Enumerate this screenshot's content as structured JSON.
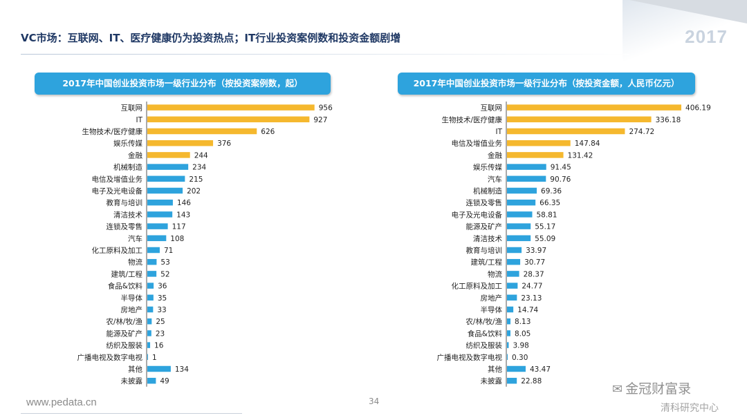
{
  "header": {
    "title": "VC市场：互联网、IT、医疗健康仍为投资热点；IT行业投资案例数和投资金额剧增",
    "year_badge": "2017"
  },
  "colors": {
    "highlight": "#f5b82e",
    "normal": "#2ea3dd"
  },
  "chart_data": [
    {
      "type": "bar",
      "orientation": "horizontal",
      "title": "2017年中国创业投资市场一级行业分布（按投资案例数，起）",
      "categories": [
        "互联网",
        "IT",
        "生物技术/医疗健康",
        "娱乐传媒",
        "金融",
        "机械制造",
        "电信及增值业务",
        "电子及光电设备",
        "教育与培训",
        "清洁技术",
        "连锁及零售",
        "汽车",
        "化工原料及加工",
        "物流",
        "建筑/工程",
        "食品&饮料",
        "半导体",
        "房地产",
        "农/林/牧/渔",
        "能源及矿产",
        "纺织及服装",
        "广播电视及数字电视",
        "其他",
        "未披露"
      ],
      "values": [
        956,
        927,
        626,
        376,
        244,
        234,
        215,
        202,
        146,
        143,
        117,
        108,
        71,
        53,
        52,
        36,
        35,
        33,
        25,
        23,
        16,
        1,
        134,
        49
      ],
      "labels": [
        "956",
        "927",
        "626",
        "376",
        "244",
        "234",
        "215",
        "202",
        "146",
        "143",
        "117",
        "108",
        "71",
        "53",
        "52",
        "36",
        "35",
        "33",
        "25",
        "23",
        "16",
        "1",
        "134",
        "49"
      ],
      "highlighted_count": 5,
      "xlim": [
        0,
        1060
      ]
    },
    {
      "type": "bar",
      "orientation": "horizontal",
      "title": "2017年中国创业投资市场一级行业分布（按投资金额，人民币亿元）",
      "categories": [
        "互联网",
        "生物技术/医疗健康",
        "IT",
        "电信及增值业务",
        "金融",
        "娱乐传媒",
        "汽车",
        "机械制造",
        "连锁及零售",
        "电子及光电设备",
        "能源及矿产",
        "清洁技术",
        "教育与培训",
        "建筑/工程",
        "物流",
        "化工原料及加工",
        "房地产",
        "半导体",
        "农/林/牧/渔",
        "食品&饮料",
        "纺织及服装",
        "广播电视及数字电视",
        "其他",
        "未披露"
      ],
      "values": [
        406.19,
        336.18,
        274.72,
        147.84,
        131.42,
        91.45,
        90.76,
        69.36,
        66.35,
        58.81,
        55.17,
        55.09,
        33.97,
        30.77,
        28.37,
        24.77,
        23.13,
        14.74,
        8.13,
        8.05,
        3.98,
        0.3,
        43.47,
        22.88
      ],
      "labels": [
        "406.19",
        "336.18",
        "274.72",
        "147.84",
        "131.42",
        "91.45",
        "90.76",
        "69.36",
        "66.35",
        "58.81",
        "55.17",
        "55.09",
        "33.97",
        "30.77",
        "28.37",
        "24.77",
        "23.13",
        "14.74",
        "8.13",
        "8.05",
        "3.98",
        "0.30",
        "43.47",
        "22.88"
      ],
      "highlighted_count": 5,
      "xlim": [
        0,
        440
      ]
    }
  ],
  "footer": {
    "url": "www.pedata.cn",
    "page_number": "34"
  },
  "watermark": {
    "icon": "wechat-icon",
    "name": "金冠财富录",
    "sub": "清科研究中心"
  }
}
